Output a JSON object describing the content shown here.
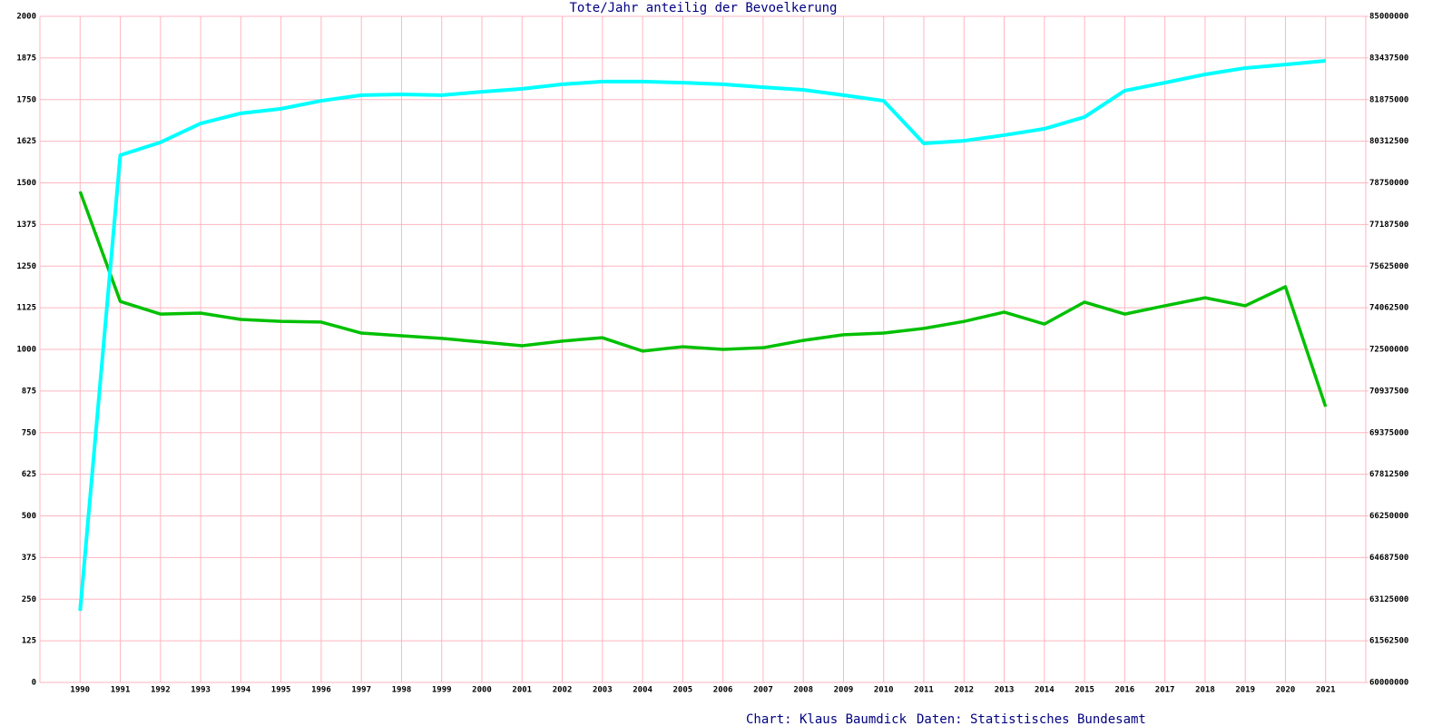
{
  "chart_data": {
    "type": "line",
    "title": "Tote/Jahr anteilig der Bevoelkerung",
    "credits": [
      "Chart: Klaus Baumdick",
      "Daten: Statistisches Bundesamt"
    ],
    "x": [
      "1990",
      "1991",
      "1992",
      "1993",
      "1994",
      "1995",
      "1996",
      "1997",
      "1998",
      "1999",
      "2000",
      "2001",
      "2002",
      "2003",
      "2004",
      "2005",
      "2006",
      "2007",
      "2008",
      "2009",
      "2010",
      "2011",
      "2012",
      "2013",
      "2014",
      "2015",
      "2016",
      "2017",
      "2018",
      "2019",
      "2020",
      "2021"
    ],
    "ylim": [
      0,
      2000
    ],
    "yticks": [
      0,
      125,
      250,
      375,
      500,
      625,
      750,
      875,
      1000,
      1125,
      1250,
      1375,
      1500,
      1625,
      1750,
      1875,
      2000
    ],
    "y2lim": [
      60000000,
      85000000
    ],
    "y2ticks": [
      60000000,
      61562500,
      63125000,
      64687500,
      66250000,
      67812500,
      69375000,
      70937500,
      72500000,
      74062500,
      75625000,
      77187500,
      78750000,
      80312500,
      81875000,
      83437500,
      85000000
    ],
    "grid": true,
    "grid_color": "#ffb6c1",
    "series": [
      {
        "color": "#00c000",
        "values": [
          1474,
          1144,
          1106,
          1109,
          1090,
          1084,
          1082,
          1049,
          1041,
          1033,
          1022,
          1011,
          1025,
          1035,
          995,
          1008,
          1000,
          1005,
          1027,
          1044,
          1049,
          1063,
          1084,
          1112,
          1076,
          1142,
          1106,
          1131,
          1155,
          1131,
          1188,
          828
        ]
      },
      {
        "color": "#00ffff",
        "axis": "y2",
        "values": [
          62690000,
          79790000,
          80270000,
          80980000,
          81360000,
          81530000,
          81830000,
          82040000,
          82070000,
          82040000,
          82170000,
          82280000,
          82450000,
          82550000,
          82550000,
          82510000,
          82450000,
          82340000,
          82240000,
          82040000,
          81830000,
          80230000,
          80330000,
          80540000,
          80780000,
          81220000,
          82210000,
          82510000,
          82820000,
          83060000,
          83190000,
          83330000
        ]
      }
    ]
  }
}
